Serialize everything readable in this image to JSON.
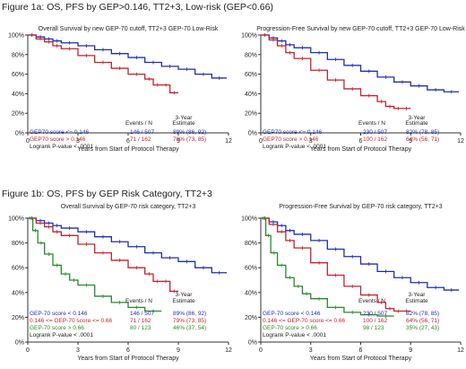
{
  "figure_titles": [
    "Figure 1a: OS, PFS by GEP>0.146, TT2+3, Low-risk (GEP<0.66)",
    "Figure 1b: OS, PFS by GEP Risk Category, TT2+3"
  ],
  "colors": {
    "blue": "#1f2fb4",
    "red": "#c4242c",
    "green": "#2a8a2a"
  },
  "chart_data": [
    {
      "type": "line",
      "title": "Overall Survival by new GEP-70 cutoff, TT2+3 GEP-70 Low-Risk",
      "xlabel": "Years from Start of Protocol Therapy",
      "xlim": [
        0,
        12
      ],
      "ylim": [
        0,
        100
      ],
      "xticks": [
        "0",
        "3",
        "6",
        "9",
        "12"
      ],
      "yticks": [
        "0%",
        "20%",
        "40%",
        "60%",
        "80%",
        "100%"
      ],
      "table_header": {
        "events": "Events / N",
        "estimate": "3-Year\nEstimate"
      },
      "series": [
        {
          "name": "GEP70 score <= 0.146",
          "color": "#1f2fb4",
          "events": "146 / 507",
          "estimate": "89% (86, 92)",
          "x": [
            0,
            0.5,
            1,
            1.5,
            2,
            3,
            4,
            5,
            6,
            7,
            8,
            9,
            10,
            11,
            11.9
          ],
          "y": [
            100,
            98,
            96,
            94,
            92,
            89,
            85,
            81,
            77,
            72,
            68,
            65,
            60,
            56,
            56
          ]
        },
        {
          "name": "GEP70 score > 0.146",
          "color": "#c4242c",
          "events": "71 / 162",
          "estimate": "79% (73, 85)",
          "x": [
            0,
            0.5,
            1,
            1.5,
            2,
            3,
            4,
            5,
            6,
            7,
            7.5,
            8,
            8.5,
            9
          ],
          "y": [
            100,
            96,
            93,
            89,
            86,
            79,
            72,
            66,
            60,
            55,
            49,
            49,
            41,
            41
          ]
        }
      ],
      "pvalue": "Logrank P-value < .0001"
    },
    {
      "type": "line",
      "title": "Progression-Free Survival by new GEP-70 cutoff, TT2+3 GEP-70 Low-Risk",
      "xlabel": "Years from Start of Protocol Therapy",
      "xlim": [
        0,
        12
      ],
      "ylim": [
        0,
        100
      ],
      "xticks": [
        "0",
        "3",
        "6",
        "9",
        "12"
      ],
      "yticks": [
        "0%",
        "20%",
        "40%",
        "60%",
        "80%",
        "100%"
      ],
      "table_header": {
        "events": "Events / N",
        "estimate": "3-Year\nEstimate"
      },
      "series": [
        {
          "name": "GEP70 score <= 0.146",
          "color": "#1f2fb4",
          "events": "230 / 507",
          "estimate": "82% (78, 85)",
          "x": [
            0,
            0.5,
            1,
            1.5,
            2,
            3,
            4,
            5,
            6,
            7,
            8,
            9,
            10,
            11,
            11.9
          ],
          "y": [
            100,
            97,
            94,
            90,
            87,
            82,
            75,
            69,
            63,
            57,
            52,
            48,
            44,
            42,
            42
          ]
        },
        {
          "name": "GEP70 score > 0.146",
          "color": "#c4242c",
          "events": "100 / 162",
          "estimate": "64% (56, 71)",
          "x": [
            0,
            0.5,
            1,
            1.5,
            2,
            3,
            4,
            5,
            6,
            7,
            7.5,
            8,
            8.5,
            9
          ],
          "y": [
            100,
            95,
            89,
            82,
            76,
            64,
            54,
            45,
            38,
            32,
            27,
            25,
            25,
            25
          ]
        }
      ],
      "pvalue": "Logrank P-value < .0001"
    },
    {
      "type": "line",
      "title": "Overall Survival by GEP-70 risk category, TT2+3",
      "xlabel": "Years from Start of Protocol Therapy",
      "xlim": [
        0,
        12
      ],
      "ylim": [
        0,
        100
      ],
      "xticks": [
        "0",
        "3",
        "6",
        "9",
        "12"
      ],
      "yticks": [
        "0%",
        "20%",
        "40%",
        "60%",
        "80%",
        "100%"
      ],
      "table_header": {
        "events": "Events / N",
        "estimate": "3-Year\nEstimate"
      },
      "series": [
        {
          "name": "GEP-70 score < 0.146",
          "color": "#1f2fb4",
          "events": "146 / 507",
          "estimate": "89% (86, 92)",
          "x": [
            0,
            0.5,
            1,
            1.5,
            2,
            3,
            4,
            5,
            6,
            7,
            8,
            9,
            10,
            11,
            11.9
          ],
          "y": [
            100,
            98,
            96,
            94,
            92,
            89,
            85,
            81,
            77,
            72,
            68,
            65,
            60,
            56,
            56
          ]
        },
        {
          "name": "0.146 <= GEP-70 score <= 0.66",
          "color": "#c4242c",
          "events": "71 / 162",
          "estimate": "79% (73, 85)",
          "x": [
            0,
            0.5,
            1,
            1.5,
            2,
            3,
            4,
            5,
            6,
            7,
            7.5,
            8,
            8.5,
            9
          ],
          "y": [
            100,
            96,
            93,
            89,
            86,
            79,
            72,
            66,
            60,
            55,
            49,
            49,
            41,
            41
          ]
        },
        {
          "name": "GEP-70 score > 0.66",
          "color": "#2a8a2a",
          "events": "80 / 123",
          "estimate": "46% (37, 54)",
          "x": [
            0,
            0.3,
            0.6,
            1,
            1.5,
            2,
            2.5,
            3,
            4,
            5,
            6,
            7,
            8
          ],
          "y": [
            100,
            90,
            80,
            71,
            62,
            55,
            50,
            46,
            37,
            32,
            28,
            25,
            25
          ]
        }
      ],
      "pvalue": "Logrank P-value < .0001"
    },
    {
      "type": "line",
      "title": "Progression-Free Survival by GEP-70 risk category, TT2+3",
      "xlabel": "Years from Start of Protocol Therapy",
      "xlim": [
        0,
        12
      ],
      "ylim": [
        0,
        100
      ],
      "xticks": [
        "0",
        "3",
        "6",
        "9",
        "12"
      ],
      "yticks": [
        "0%",
        "20%",
        "40%",
        "60%",
        "80%",
        "100%"
      ],
      "table_header": {
        "events": "Events / N",
        "estimate": "3-Year\nEstimate"
      },
      "series": [
        {
          "name": "GEP-70 score < 0.146",
          "color": "#1f2fb4",
          "events": "230 / 507",
          "estimate": "82% (78, 85)",
          "x": [
            0,
            0.5,
            1,
            1.5,
            2,
            3,
            4,
            5,
            6,
            7,
            8,
            9,
            10,
            11,
            11.9
          ],
          "y": [
            100,
            97,
            94,
            90,
            87,
            82,
            75,
            69,
            63,
            57,
            52,
            48,
            44,
            42,
            42
          ]
        },
        {
          "name": "0.146 <= GEP-70 score <= 0.66",
          "color": "#c4242c",
          "events": "100 / 162",
          "estimate": "64% (56, 71)",
          "x": [
            0,
            0.5,
            1,
            1.5,
            2,
            3,
            4,
            5,
            6,
            7,
            7.5,
            8,
            8.5,
            9
          ],
          "y": [
            100,
            95,
            89,
            82,
            76,
            64,
            54,
            45,
            38,
            32,
            27,
            25,
            25,
            25
          ]
        },
        {
          "name": "GEP-70 score > 0.66",
          "color": "#2a8a2a",
          "events": "98 / 123",
          "estimate": "35% (27, 43)",
          "x": [
            0,
            0.3,
            0.6,
            1,
            1.5,
            2,
            2.5,
            3,
            4,
            5,
            6,
            7,
            8
          ],
          "y": [
            100,
            86,
            72,
            62,
            52,
            45,
            39,
            35,
            28,
            24,
            22,
            21,
            21
          ]
        }
      ],
      "pvalue": "Logrank P-value < .0001"
    }
  ]
}
